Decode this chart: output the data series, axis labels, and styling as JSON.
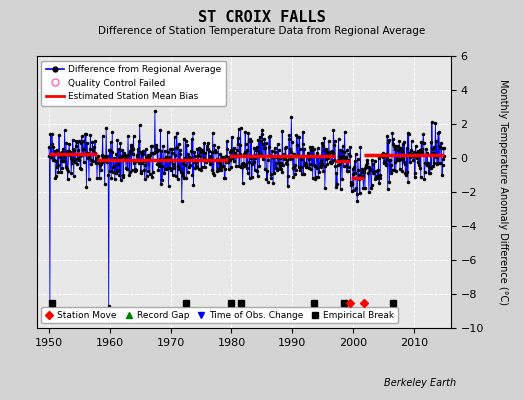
{
  "title": "ST CROIX FALLS",
  "subtitle": "Difference of Station Temperature Data from Regional Average",
  "ylabel": "Monthly Temperature Anomaly Difference (°C)",
  "xlabel_years": [
    1950,
    1960,
    1970,
    1980,
    1990,
    2000,
    2010
  ],
  "xlim": [
    1948,
    2016
  ],
  "ylim": [
    -10,
    6
  ],
  "yticks": [
    -10,
    -8,
    -6,
    -4,
    -2,
    0,
    2,
    4,
    6
  ],
  "bg_color": "#d3d3d3",
  "plot_bg_color": "#e8e8e8",
  "grid_color": "#ffffff",
  "line_color": "#0000ff",
  "bias_color": "#ff0000",
  "marker_color": "#000000",
  "qc_color": "#ff69b4",
  "seed": 42,
  "station_moves": [
    1999.5,
    2001.75
  ],
  "empirical_breaks": [
    1950.5,
    1972.5,
    1980.0,
    1981.5,
    1993.5,
    1998.5,
    2006.5
  ],
  "time_obs_changes": [],
  "record_gaps": [],
  "bias_segments": [
    {
      "start": 1950.0,
      "end": 1957.9,
      "bias": 0.25
    },
    {
      "start": 1957.9,
      "end": 1979.5,
      "bias": -0.1
    },
    {
      "start": 1979.5,
      "end": 1997.0,
      "bias": 0.1
    },
    {
      "start": 1997.0,
      "end": 1999.5,
      "bias": -0.15
    },
    {
      "start": 1999.5,
      "end": 2001.75,
      "bias": -1.2
    },
    {
      "start": 2001.75,
      "end": 2015.0,
      "bias": 0.15
    }
  ],
  "spike1_year": 1950.2,
  "spike1_value": -9.0,
  "spike2_year": 1959.8,
  "spike2_value": -8.7,
  "footnote": "Berkeley Earth",
  "noise_std": 0.75
}
